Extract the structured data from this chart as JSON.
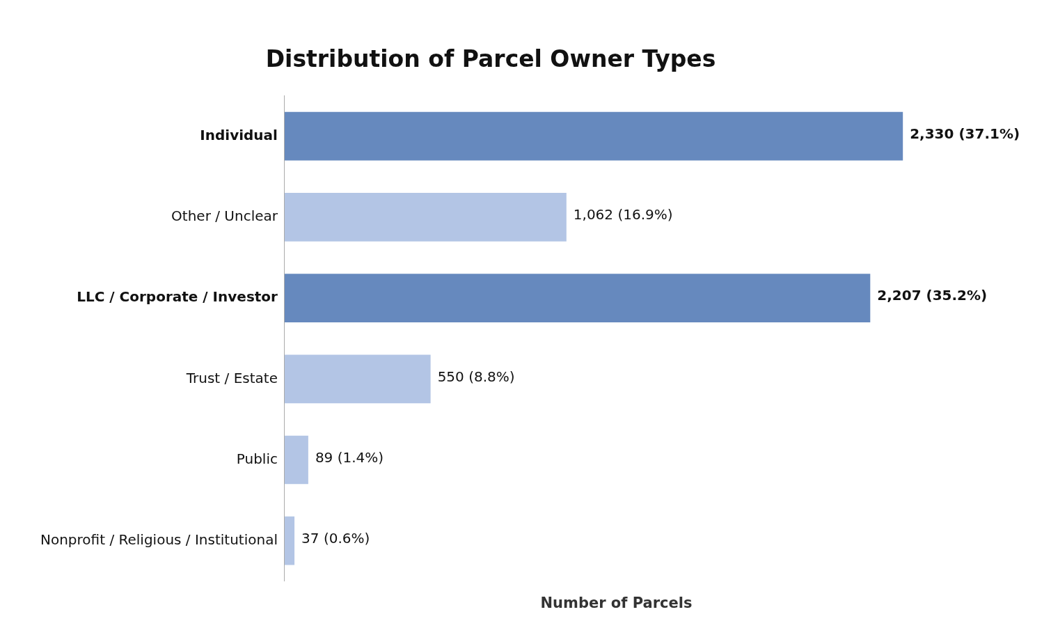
{
  "chart_data": {
    "type": "bar",
    "orientation": "horizontal",
    "title": "Distribution of Parcel Owner Types",
    "xlabel": "Number of Parcels",
    "categories": [
      "Individual",
      "Other / Unclear",
      "LLC / Corporate / Investor",
      "Trust / Estate",
      "Public",
      "Nonprofit / Religious / Institutional"
    ],
    "values": [
      2330,
      1062,
      2207,
      550,
      89,
      37
    ],
    "colors": [
      "#6689be",
      "#b3c5e5",
      "#6689be",
      "#b3c5e5",
      "#b3c5e5",
      "#b3c5e5"
    ],
    "value_labels": [
      "2,330 (37.1%)",
      "1,062 (16.9%)",
      "2,207 (35.2%)",
      "550 (8.8%)",
      "89 (1.4%)",
      "37 (0.6%)"
    ],
    "tick_labels": "y",
    "grid": false,
    "legend": false
  }
}
